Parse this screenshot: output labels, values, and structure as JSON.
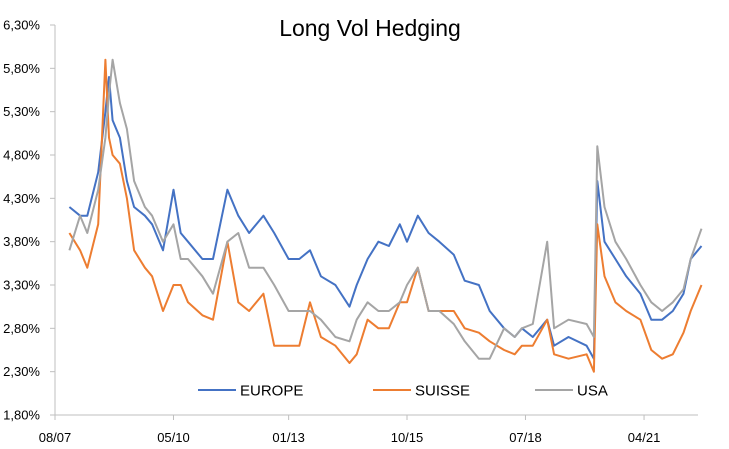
{
  "chart_data": {
    "type": "line",
    "title": "Long Vol Hedging",
    "xlabel": "",
    "ylabel": "",
    "ylim": [
      1.8,
      6.3
    ],
    "yticks": [
      "1,80%",
      "2,30%",
      "2,80%",
      "3,30%",
      "3,80%",
      "4,30%",
      "4,80%",
      "5,30%",
      "5,80%",
      "6,30%"
    ],
    "ytick_values": [
      1.8,
      2.3,
      2.8,
      3.3,
      3.8,
      4.3,
      4.8,
      5.3,
      5.8,
      6.3
    ],
    "xticks": [
      "08/07",
      "05/10",
      "01/13",
      "10/15",
      "07/18",
      "04/21"
    ],
    "xtick_dates": [
      "2007-08",
      "2010-05",
      "2013-01",
      "2015-10",
      "2018-07",
      "2021-04"
    ],
    "xlim": [
      "2007-08",
      "2022-08"
    ],
    "grid": false,
    "legend_position": "bottom-inside",
    "x": [
      "2007-12",
      "2008-03",
      "2008-05",
      "2008-08",
      "2008-10",
      "2008-11",
      "2008-12",
      "2009-02",
      "2009-04",
      "2009-06",
      "2009-09",
      "2009-11",
      "2010-02",
      "2010-05",
      "2010-07",
      "2010-09",
      "2011-01",
      "2011-04",
      "2011-08",
      "2011-11",
      "2012-02",
      "2012-06",
      "2012-09",
      "2013-01",
      "2013-04",
      "2013-07",
      "2013-10",
      "2014-02",
      "2014-06",
      "2014-08",
      "2014-11",
      "2015-02",
      "2015-05",
      "2015-08",
      "2015-10",
      "2016-01",
      "2016-04",
      "2016-07",
      "2016-11",
      "2017-02",
      "2017-06",
      "2017-09",
      "2018-01",
      "2018-04",
      "2018-06",
      "2018-09",
      "2019-01",
      "2019-03",
      "2019-07",
      "2019-12",
      "2020-02",
      "2020-03",
      "2020-05",
      "2020-08",
      "2020-11",
      "2021-03",
      "2021-06",
      "2021-09",
      "2021-12",
      "2022-03",
      "2022-05",
      "2022-08"
    ],
    "series": [
      {
        "name": "EUROPE",
        "color": "#4472C4",
        "values": [
          4.2,
          4.1,
          4.1,
          4.6,
          5.3,
          5.7,
          5.2,
          5.0,
          4.5,
          4.2,
          4.1,
          4.0,
          3.7,
          4.4,
          3.9,
          3.8,
          3.6,
          3.6,
          4.4,
          4.1,
          3.9,
          4.1,
          3.9,
          3.6,
          3.6,
          3.7,
          3.4,
          3.3,
          3.05,
          3.3,
          3.6,
          3.8,
          3.75,
          4.0,
          3.8,
          4.1,
          3.9,
          3.8,
          3.65,
          3.35,
          3.3,
          3.0,
          2.8,
          2.7,
          2.8,
          2.7,
          2.9,
          2.6,
          2.7,
          2.6,
          2.45,
          4.5,
          3.8,
          3.6,
          3.4,
          3.2,
          2.9,
          2.9,
          3.0,
          3.2,
          3.6,
          3.75
        ]
      },
      {
        "name": "SUISSE",
        "color": "#ED7D31",
        "values": [
          3.9,
          3.7,
          3.5,
          4.0,
          5.9,
          5.0,
          4.8,
          4.7,
          4.3,
          3.7,
          3.5,
          3.4,
          3.0,
          3.3,
          3.3,
          3.1,
          2.95,
          2.9,
          3.8,
          3.1,
          3.0,
          3.2,
          2.6,
          2.6,
          2.6,
          3.1,
          2.7,
          2.6,
          2.4,
          2.5,
          2.9,
          2.8,
          2.8,
          3.1,
          3.1,
          3.5,
          3.0,
          3.0,
          3.0,
          2.8,
          2.75,
          2.65,
          2.55,
          2.5,
          2.6,
          2.6,
          2.9,
          2.5,
          2.45,
          2.5,
          2.3,
          4.0,
          3.4,
          3.1,
          3.0,
          2.9,
          2.55,
          2.45,
          2.5,
          2.75,
          3.0,
          3.3
        ]
      },
      {
        "name": "USA",
        "color": "#A5A5A5",
        "values": [
          3.7,
          4.1,
          3.9,
          4.4,
          5.0,
          5.5,
          5.9,
          5.4,
          5.1,
          4.5,
          4.2,
          4.1,
          3.8,
          4.0,
          3.6,
          3.6,
          3.4,
          3.2,
          3.8,
          3.9,
          3.5,
          3.5,
          3.3,
          3.0,
          3.0,
          3.0,
          2.9,
          2.7,
          2.65,
          2.9,
          3.1,
          3.0,
          3.0,
          3.1,
          3.3,
          3.5,
          3.0,
          3.0,
          2.85,
          2.65,
          2.45,
          2.45,
          2.8,
          2.7,
          2.8,
          2.85,
          3.8,
          2.8,
          2.9,
          2.85,
          2.7,
          4.9,
          4.2,
          3.8,
          3.6,
          3.3,
          3.1,
          3.0,
          3.1,
          3.25,
          3.6,
          3.95
        ]
      }
    ]
  }
}
